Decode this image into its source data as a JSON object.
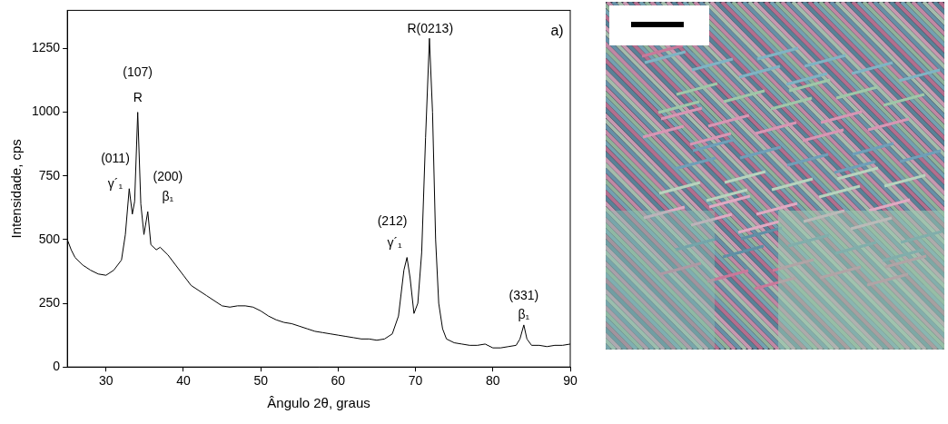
{
  "chart_data": {
    "type": "line",
    "x_label": "Ângulo 2θ, graus",
    "y_label": "Intensidade, cps",
    "color": "#000000",
    "grid": false,
    "xlim": [
      25,
      90
    ],
    "xticks": [
      30,
      40,
      50,
      60,
      70,
      80,
      90
    ],
    "ylim": [
      0,
      1400
    ],
    "yticks": [
      0,
      250,
      500,
      750,
      1000,
      1250
    ],
    "x": [
      25,
      25.5,
      26,
      27,
      28,
      29,
      30,
      31,
      32,
      32.5,
      33,
      33.4,
      33.7,
      34.1,
      34.5,
      34.9,
      35.4,
      35.8,
      36.5,
      37,
      38,
      39,
      40,
      41,
      42,
      43,
      44,
      45,
      46,
      47,
      48,
      49,
      50,
      51,
      52,
      53,
      54,
      55,
      56,
      57,
      58,
      59,
      60,
      61,
      62,
      63,
      64,
      65,
      66,
      67,
      67.8,
      68.5,
      68.9,
      69.3,
      69.8,
      70.3,
      70.8,
      71.3,
      71.8,
      72.2,
      72.6,
      73,
      73.5,
      74,
      75,
      76,
      77,
      78,
      79,
      80,
      81,
      82,
      83,
      83.5,
      84,
      84.4,
      85,
      86,
      87,
      88,
      89,
      90
    ],
    "values": [
      500,
      460,
      430,
      400,
      380,
      365,
      360,
      380,
      420,
      520,
      700,
      600,
      650,
      1000,
      640,
      520,
      610,
      480,
      460,
      470,
      440,
      400,
      360,
      320,
      300,
      280,
      260,
      240,
      235,
      240,
      240,
      235,
      220,
      200,
      185,
      175,
      170,
      160,
      150,
      140,
      135,
      130,
      125,
      120,
      115,
      110,
      110,
      105,
      110,
      130,
      200,
      380,
      430,
      350,
      210,
      250,
      450,
      900,
      1290,
      1000,
      500,
      250,
      150,
      110,
      95,
      90,
      85,
      85,
      90,
      75,
      75,
      80,
      85,
      110,
      165,
      110,
      85,
      85,
      80,
      85,
      85,
      90
    ],
    "annotations": [
      {
        "text": "γ´₁",
        "x": 31.2,
        "y": 690
      },
      {
        "text": "(011)",
        "x": 31.2,
        "y": 790
      },
      {
        "text": "R",
        "x": 34.1,
        "y": 1030
      },
      {
        "text": "(107)",
        "x": 34.1,
        "y": 1130
      },
      {
        "text": "β₁",
        "x": 38,
        "y": 640
      },
      {
        "text": "(200)",
        "x": 38,
        "y": 720
      },
      {
        "text": "γ´₁",
        "x": 67.3,
        "y": 460
      },
      {
        "text": "(212)",
        "x": 67,
        "y": 545
      },
      {
        "text": "R(0213)",
        "x": 71.9,
        "y": 1300
      },
      {
        "text": "β₁",
        "x": 84,
        "y": 180
      },
      {
        "text": "(331)",
        "x": 84,
        "y": 255
      },
      {
        "text": "a)",
        "x": 88.3,
        "y": 1290
      }
    ]
  }
}
